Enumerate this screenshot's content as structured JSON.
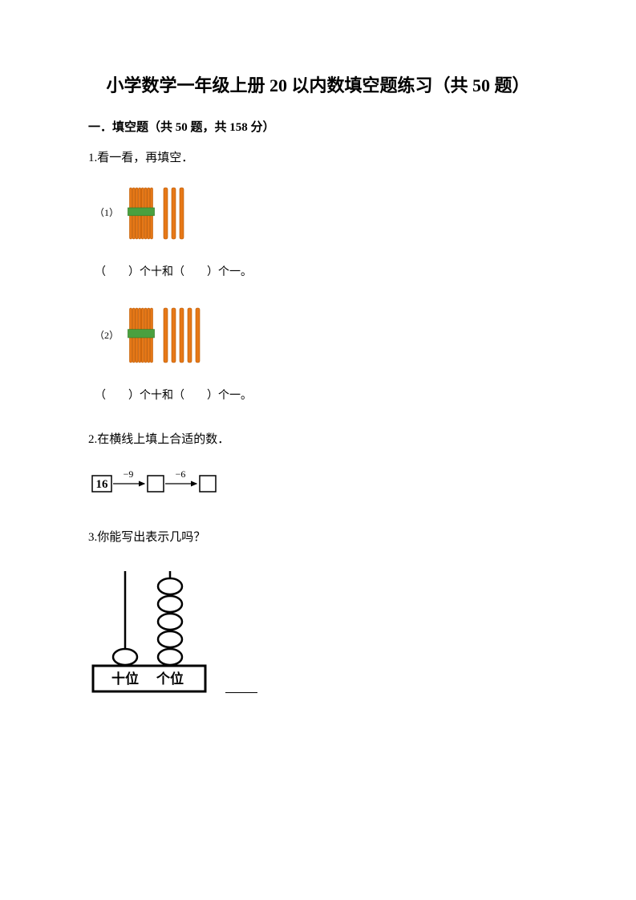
{
  "title": "小学数学一年级上册 20 以内数填空题练习（共 50 题）",
  "section": {
    "label": "一．填空题（共 50 题，共 158 分）"
  },
  "q1": {
    "number": "1.",
    "text": "看一看，再填空．",
    "sub1_label": "（1）",
    "sub2_label": "（2）",
    "fill_text": "（　　）个十和（　　）个一。",
    "bundle_color": "#e67817",
    "band_color": "#4aa03f",
    "loose_count_1": 3,
    "loose_count_2": 5
  },
  "q2": {
    "number": "2.",
    "text": "在横线上填上合适的数．",
    "start": "16",
    "op1": "−9",
    "op2": "−6"
  },
  "q3": {
    "number": "3.",
    "text": "你能写出表示几吗？",
    "tens_label": "十位",
    "ones_label": "个位",
    "tens_beads": 1,
    "ones_beads": 5
  }
}
